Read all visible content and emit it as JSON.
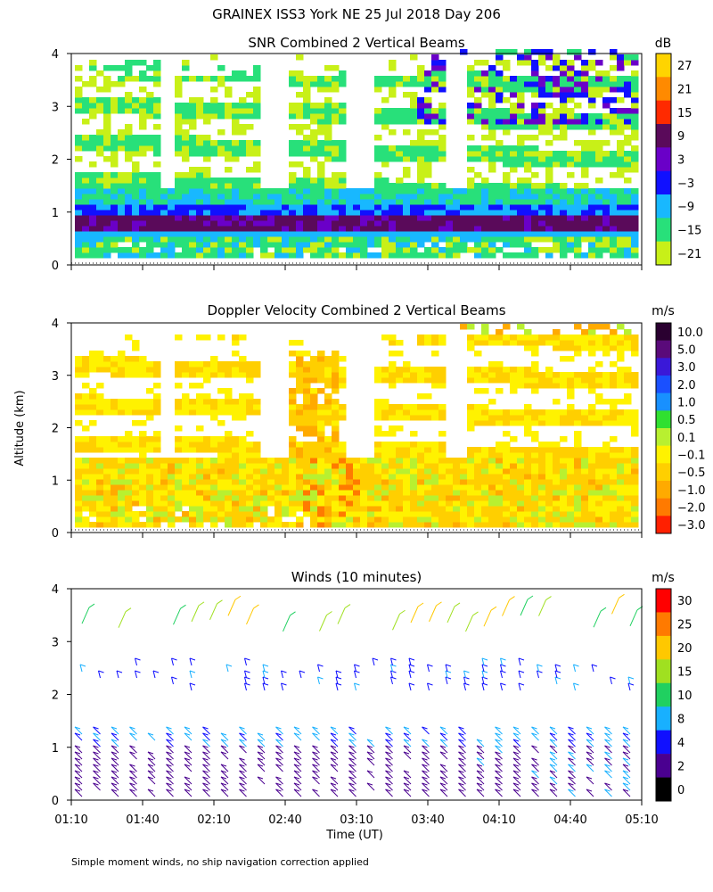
{
  "figure": {
    "title": "GRAINEX ISS3 York NE  25 Jul 2018 Day 206",
    "ylabel": "Altitude (km)",
    "xlabel": "Time (UT)",
    "footnote": "Simple moment winds, no ship navigation correction applied"
  },
  "chart_data": [
    {
      "type": "heatmap",
      "title": "SNR Combined 2 Vertical Beams",
      "ylabel": "Altitude (km)",
      "ylim": [
        0,
        4
      ],
      "yticks": [
        "0",
        "1",
        "2",
        "3",
        "4"
      ],
      "x_range": [
        "01:10",
        "05:10"
      ],
      "colorbar": {
        "unit": "dB",
        "labels": [
          "27",
          "21",
          "15",
          "9",
          "3",
          "−3",
          "−9",
          "−15",
          "−21"
        ],
        "colors": [
          "#ffd400",
          "#ff8a00",
          "#ff2a00",
          "#5a0a5a",
          "#6a00c8",
          "#1010ff",
          "#18b8ff",
          "#28e07a",
          "#c8f018"
        ]
      },
      "layers": [
        {
          "from_km": 0.7,
          "to_km": 0.9,
          "level_db": 12
        },
        {
          "from_km": 0.9,
          "to_km": 1.1,
          "level_db": -3
        },
        {
          "from_km": 1.1,
          "to_km": 1.4,
          "level_db": -12
        },
        {
          "from_km": 0.1,
          "to_km": 0.5,
          "level_db": -15
        }
      ]
    },
    {
      "type": "heatmap",
      "title": "Doppler Velocity Combined 2 Vertical Beams",
      "ylabel": "Altitude (km)",
      "ylim": [
        0,
        4
      ],
      "yticks": [
        "0",
        "1",
        "2",
        "3",
        "4"
      ],
      "x_range": [
        "01:10",
        "05:10"
      ],
      "colorbar": {
        "unit": "m/s",
        "labels": [
          "10.0",
          "5.0",
          "3.0",
          "2.0",
          "1.0",
          "0.5",
          "0.1",
          "−0.1",
          "−0.5",
          "−1.0",
          "−2.0",
          "−3.0"
        ],
        "colors": [
          "#2a0030",
          "#5a0a7a",
          "#3a18d8",
          "#1a50ff",
          "#1890ff",
          "#30e030",
          "#b8f030",
          "#fff200",
          "#ffcf00",
          "#ffaa00",
          "#ff7a00",
          "#ff2000"
        ]
      }
    },
    {
      "type": "scatter",
      "title": "Winds (10 minutes)",
      "ylabel": "Altitude (km)",
      "xlabel": "Time (UT)",
      "ylim": [
        0,
        4
      ],
      "yticks": [
        "0",
        "1",
        "2",
        "3",
        "4"
      ],
      "x_ticklabels": [
        "01:10",
        "01:40",
        "02:10",
        "02:40",
        "03:10",
        "03:40",
        "04:10",
        "04:40",
        "05:10"
      ],
      "colorbar": {
        "unit": "m/s",
        "labels": [
          "30",
          "25",
          "20",
          "15",
          "10",
          "8",
          "4",
          "2",
          "0"
        ],
        "colors": [
          "#ff0000",
          "#ff7a00",
          "#ffc800",
          "#a0e020",
          "#20d060",
          "#18b0ff",
          "#1010ff",
          "#4a0090",
          "#000000"
        ]
      }
    }
  ]
}
